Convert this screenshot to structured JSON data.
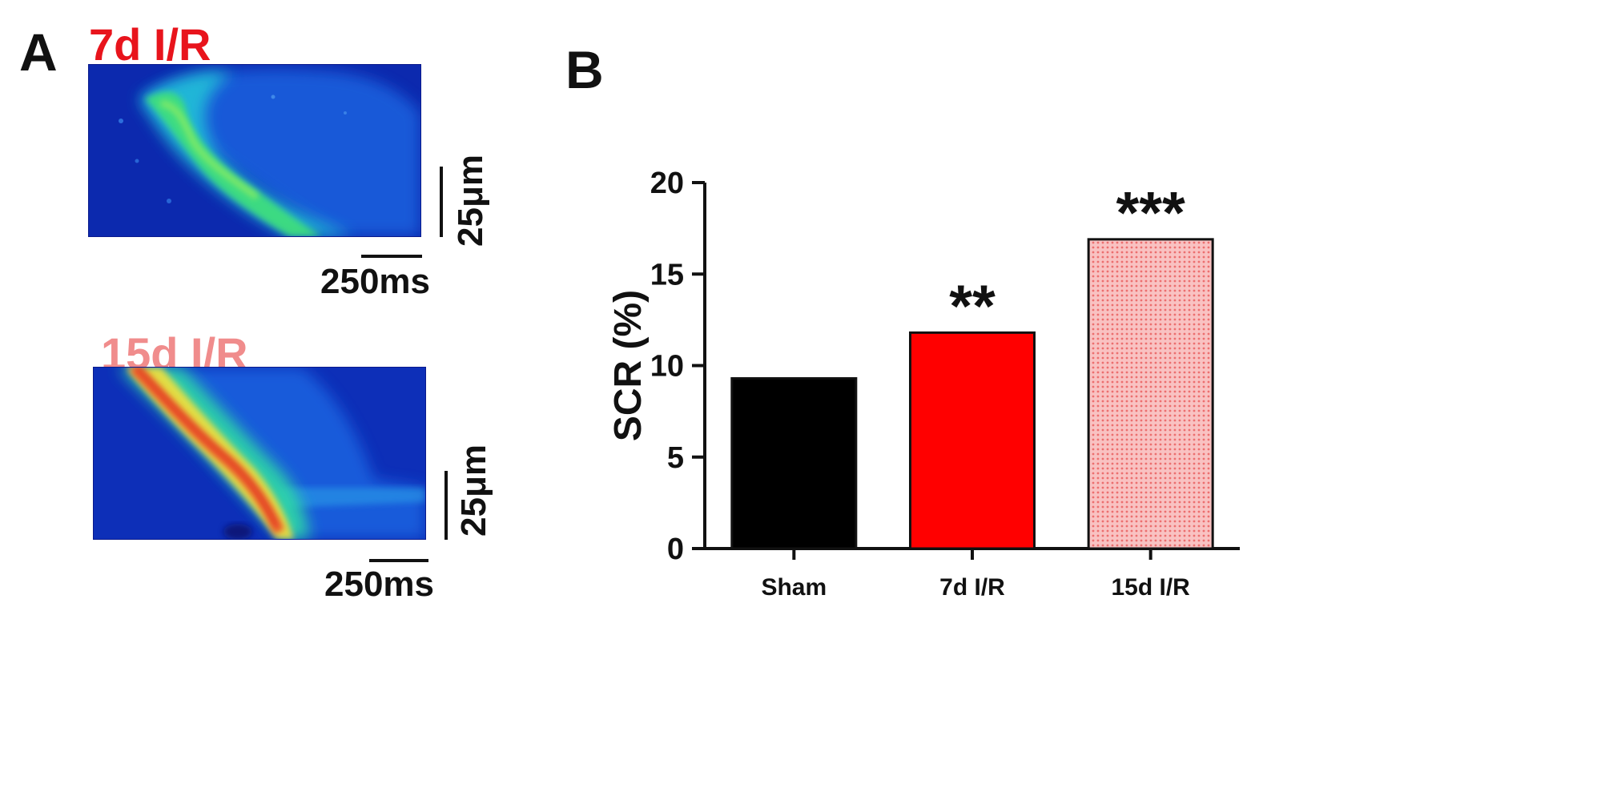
{
  "panel_a": {
    "letter": "A",
    "scans": [
      {
        "label": "7d I/R",
        "label_color": "#e8141c",
        "vertical_scale": "25μm",
        "horizontal_scale": "250ms"
      },
      {
        "label": "15d I/R",
        "label_color": "#f08c8c",
        "vertical_scale": "25μm",
        "horizontal_scale": "250ms"
      }
    ]
  },
  "panel_b": {
    "letter": "B"
  },
  "chart_data": {
    "type": "bar",
    "categories": [
      "Sham",
      "7d I/R",
      "15d I/R"
    ],
    "values": [
      9.3,
      11.8,
      16.9
    ],
    "significance": [
      "",
      "**",
      "***"
    ],
    "bar_colors": [
      "#000000",
      "#ff0000",
      "#f7a3a3"
    ],
    "ylabel": "SCR (%)",
    "ylim": [
      0,
      20
    ],
    "yticks": [
      0,
      5,
      10,
      15,
      20
    ],
    "grid": false,
    "legend": "none"
  }
}
